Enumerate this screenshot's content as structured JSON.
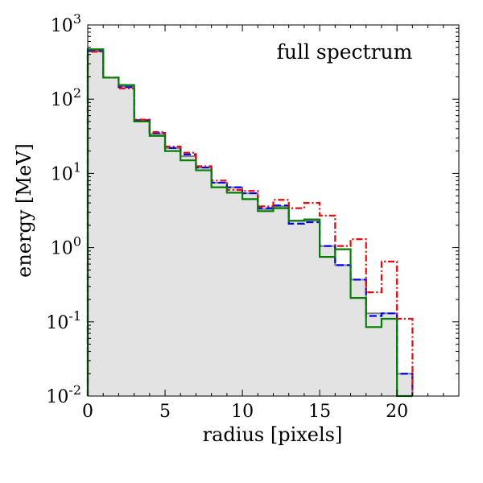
{
  "chart_data": {
    "type": "histogram-step",
    "annotation": "full spectrum",
    "xlabel": "radius [pixels]",
    "ylabel": "energy [MeV]",
    "xlim": [
      0,
      24
    ],
    "ylim": [
      0.01,
      1000
    ],
    "yscale": "log",
    "grid": false,
    "x_ticks": [
      0,
      5,
      10,
      15,
      20
    ],
    "y_ticks": [
      {
        "value": 0.01,
        "base": "10",
        "exp": "-2"
      },
      {
        "value": 0.1,
        "base": "10",
        "exp": "-1"
      },
      {
        "value": 1,
        "base": "10",
        "exp": "0"
      },
      {
        "value": 10,
        "base": "10",
        "exp": "1"
      },
      {
        "value": 100,
        "base": "10",
        "exp": "2"
      },
      {
        "value": 1000,
        "base": "10",
        "exp": "3"
      }
    ],
    "bin_edges": [
      0,
      1,
      2,
      3,
      4,
      5,
      6,
      7,
      8,
      9,
      10,
      11,
      12,
      13,
      14,
      15,
      16,
      17,
      18,
      19,
      20,
      21
    ],
    "series": [
      {
        "color": "#808080",
        "style": "filled",
        "fill": "#e3e3e3",
        "values": [
          450,
          195,
          150,
          52,
          34,
          22,
          17,
          12,
          7.5,
          6.5,
          5.4,
          3.3,
          3.6,
          2.3,
          2.3,
          1.05,
          0.58,
          0.37,
          0.13,
          0.13,
          0.02
        ]
      },
      {
        "color": "#0000ff",
        "style": "dashed",
        "values": [
          445,
          195,
          145,
          52,
          35,
          22,
          18,
          12,
          7.5,
          6.5,
          5.4,
          3.4,
          3.7,
          2.1,
          2.2,
          1.05,
          0.58,
          0.37,
          0.12,
          0.13,
          0.02
        ]
      },
      {
        "color": "#ff0000",
        "style": "dashdot",
        "values": [
          435,
          195,
          140,
          53,
          36,
          23,
          19,
          12.5,
          8,
          6,
          5.8,
          3.6,
          4.4,
          3.4,
          4.0,
          2.7,
          1.05,
          1.3,
          0.25,
          0.65,
          0.11
        ]
      },
      {
        "color": "#008000",
        "style": "solid",
        "values": [
          470,
          195,
          155,
          50,
          32,
          20,
          15,
          11,
          6.5,
          5.5,
          4.5,
          3.1,
          3.4,
          2.3,
          2.4,
          0.75,
          0.95,
          0.21,
          0.085,
          0.11,
          0.01
        ]
      }
    ]
  }
}
